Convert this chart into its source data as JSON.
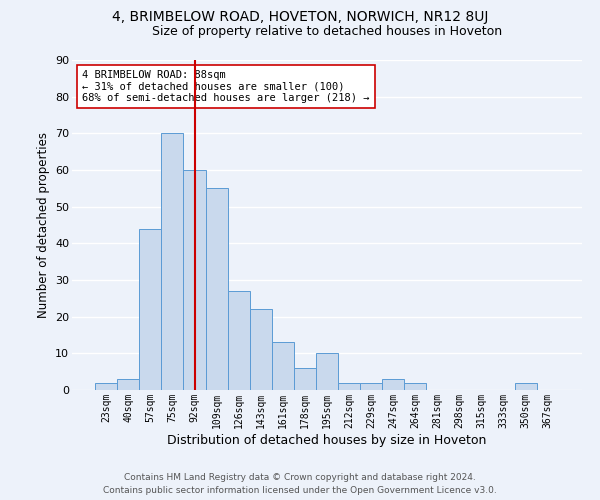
{
  "title1": "4, BRIMBELOW ROAD, HOVETON, NORWICH, NR12 8UJ",
  "title2": "Size of property relative to detached houses in Hoveton",
  "xlabel": "Distribution of detached houses by size in Hoveton",
  "ylabel": "Number of detached properties",
  "bar_labels": [
    "23sqm",
    "40sqm",
    "57sqm",
    "75sqm",
    "92sqm",
    "109sqm",
    "126sqm",
    "143sqm",
    "161sqm",
    "178sqm",
    "195sqm",
    "212sqm",
    "229sqm",
    "247sqm",
    "264sqm",
    "281sqm",
    "298sqm",
    "315sqm",
    "333sqm",
    "350sqm",
    "367sqm"
  ],
  "bar_values": [
    2,
    3,
    44,
    70,
    60,
    55,
    27,
    22,
    13,
    6,
    10,
    2,
    2,
    3,
    2,
    0,
    0,
    0,
    0,
    2,
    0
  ],
  "bar_color": "#c9d9ed",
  "bar_edge_color": "#5b9bd5",
  "red_line_index": 4,
  "red_line_color": "#cc0000",
  "annotation_text": "4 BRIMBELOW ROAD: 88sqm\n← 31% of detached houses are smaller (100)\n68% of semi-detached houses are larger (218) →",
  "annotation_box_color": "#ffffff",
  "annotation_box_edge": "#cc0000",
  "footer1": "Contains HM Land Registry data © Crown copyright and database right 2024.",
  "footer2": "Contains public sector information licensed under the Open Government Licence v3.0.",
  "background_color": "#edf2fa",
  "ylim": [
    0,
    90
  ],
  "title1_fontsize": 10,
  "title2_fontsize": 9
}
